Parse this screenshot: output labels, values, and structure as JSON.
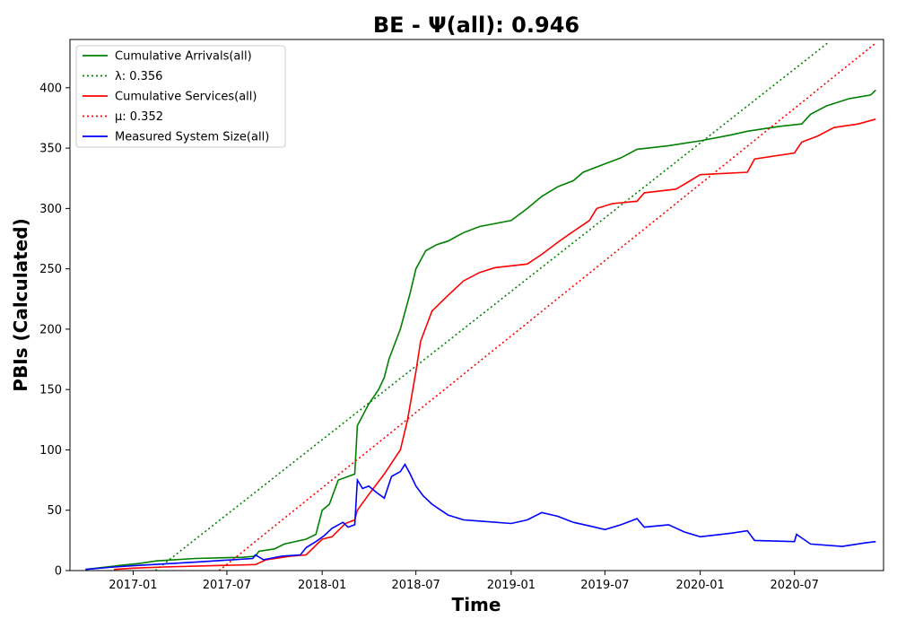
{
  "chart_data": {
    "type": "line",
    "title": "BE -  Ψ(all): 0.946",
    "xlabel": "Time",
    "ylabel": "PBIs (Calculated)",
    "xlim": [
      "2016-09-01",
      "2020-12-20"
    ],
    "ylim": [
      0,
      440
    ],
    "x_ticks": [
      "2017-01",
      "2017-07",
      "2018-01",
      "2018-07",
      "2019-01",
      "2019-07",
      "2020-01",
      "2020-07"
    ],
    "y_ticks": [
      0,
      50,
      100,
      150,
      200,
      250,
      300,
      350,
      400
    ],
    "grid": false,
    "legend_position": "upper-left",
    "colors": {
      "arrivals": "#008000",
      "services": "#ff0000",
      "system_size": "#0000ff"
    },
    "series": [
      {
        "name": "Cumulative Arrivals(all)",
        "style": "solid",
        "color": "#008000",
        "points": [
          [
            "2016-10-01",
            1
          ],
          [
            "2016-12-01",
            4
          ],
          [
            "2017-01-15",
            6
          ],
          [
            "2017-02-15",
            8
          ],
          [
            "2017-05-01",
            10
          ],
          [
            "2017-08-01",
            11
          ],
          [
            "2017-08-25",
            12
          ],
          [
            "2017-09-01",
            16
          ],
          [
            "2017-10-01",
            18
          ],
          [
            "2017-10-20",
            22
          ],
          [
            "2017-12-01",
            26
          ],
          [
            "2017-12-20",
            30
          ],
          [
            "2018-01-01",
            50
          ],
          [
            "2018-01-15",
            55
          ],
          [
            "2018-02-01",
            75
          ],
          [
            "2018-02-20",
            78
          ],
          [
            "2018-03-05",
            80
          ],
          [
            "2018-03-10",
            120
          ],
          [
            "2018-04-01",
            138
          ],
          [
            "2018-04-20",
            150
          ],
          [
            "2018-05-01",
            160
          ],
          [
            "2018-05-10",
            175
          ],
          [
            "2018-06-01",
            200
          ],
          [
            "2018-06-20",
            230
          ],
          [
            "2018-07-01",
            250
          ],
          [
            "2018-07-20",
            265
          ],
          [
            "2018-08-10",
            270
          ],
          [
            "2018-09-01",
            273
          ],
          [
            "2018-10-01",
            280
          ],
          [
            "2018-11-01",
            285
          ],
          [
            "2019-01-01",
            290
          ],
          [
            "2019-02-01",
            300
          ],
          [
            "2019-03-01",
            310
          ],
          [
            "2019-04-01",
            318
          ],
          [
            "2019-05-01",
            323
          ],
          [
            "2019-05-20",
            330
          ],
          [
            "2019-07-01",
            337
          ],
          [
            "2019-08-01",
            342
          ],
          [
            "2019-09-01",
            349
          ],
          [
            "2019-11-01",
            352
          ],
          [
            "2020-01-01",
            356
          ],
          [
            "2020-03-01",
            361
          ],
          [
            "2020-04-01",
            364
          ],
          [
            "2020-06-01",
            368
          ],
          [
            "2020-07-15",
            370
          ],
          [
            "2020-08-01",
            378
          ],
          [
            "2020-09-01",
            385
          ],
          [
            "2020-10-15",
            391
          ],
          [
            "2020-11-25",
            394
          ],
          [
            "2020-12-05",
            398
          ]
        ]
      },
      {
        "name": "λ: 0.356",
        "style": "dotted",
        "color": "#008000",
        "points": [
          [
            "2017-02-13",
            0
          ],
          [
            "2020-09-03",
            437
          ]
        ]
      },
      {
        "name": "Cumulative Services(all)",
        "style": "solid",
        "color": "#ff0000",
        "points": [
          [
            "2016-11-25",
            1
          ],
          [
            "2017-01-01",
            2
          ],
          [
            "2017-03-01",
            3
          ],
          [
            "2017-06-01",
            4
          ],
          [
            "2017-08-25",
            5
          ],
          [
            "2017-09-15",
            9
          ],
          [
            "2017-11-01",
            12
          ],
          [
            "2017-12-01",
            13
          ],
          [
            "2018-01-01",
            26
          ],
          [
            "2018-01-20",
            28
          ],
          [
            "2018-02-15",
            39
          ],
          [
            "2018-03-05",
            42
          ],
          [
            "2018-03-10",
            50
          ],
          [
            "2018-04-01",
            63
          ],
          [
            "2018-05-01",
            80
          ],
          [
            "2018-06-01",
            100
          ],
          [
            "2018-06-15",
            125
          ],
          [
            "2018-07-01",
            165
          ],
          [
            "2018-07-10",
            190
          ],
          [
            "2018-08-01",
            215
          ],
          [
            "2018-09-01",
            228
          ],
          [
            "2018-10-01",
            240
          ],
          [
            "2018-11-01",
            247
          ],
          [
            "2018-12-01",
            251
          ],
          [
            "2019-02-01",
            254
          ],
          [
            "2019-03-01",
            262
          ],
          [
            "2019-04-01",
            272
          ],
          [
            "2019-05-01",
            281
          ],
          [
            "2019-06-01",
            290
          ],
          [
            "2019-06-15",
            300
          ],
          [
            "2019-07-15",
            304
          ],
          [
            "2019-09-01",
            306
          ],
          [
            "2019-09-15",
            313
          ],
          [
            "2019-11-15",
            316
          ],
          [
            "2019-12-01",
            320
          ],
          [
            "2020-01-01",
            328
          ],
          [
            "2020-04-01",
            330
          ],
          [
            "2020-04-15",
            341
          ],
          [
            "2020-07-01",
            346
          ],
          [
            "2020-07-15",
            355
          ],
          [
            "2020-08-15",
            360
          ],
          [
            "2020-09-15",
            367
          ],
          [
            "2020-11-01",
            370
          ],
          [
            "2020-12-05",
            374
          ]
        ]
      },
      {
        "name": "μ: 0.352",
        "style": "dotted",
        "color": "#ff0000",
        "points": [
          [
            "2017-06-16",
            0
          ],
          [
            "2020-12-05",
            437
          ]
        ]
      },
      {
        "name": "Measured System Size(all)",
        "style": "solid",
        "color": "#0000ff",
        "points": [
          [
            "2016-10-01",
            1
          ],
          [
            "2016-11-25",
            3
          ],
          [
            "2017-01-01",
            4
          ],
          [
            "2017-05-01",
            7
          ],
          [
            "2017-08-20",
            10
          ],
          [
            "2017-08-25",
            13
          ],
          [
            "2017-09-10",
            9
          ],
          [
            "2017-10-15",
            12
          ],
          [
            "2017-11-20",
            13
          ],
          [
            "2017-12-01",
            19
          ],
          [
            "2017-12-20",
            24
          ],
          [
            "2018-01-05",
            29
          ],
          [
            "2018-01-20",
            35
          ],
          [
            "2018-02-10",
            40
          ],
          [
            "2018-02-20",
            36
          ],
          [
            "2018-03-05",
            38
          ],
          [
            "2018-03-10",
            75
          ],
          [
            "2018-03-20",
            68
          ],
          [
            "2018-04-01",
            70
          ],
          [
            "2018-04-15",
            65
          ],
          [
            "2018-05-01",
            60
          ],
          [
            "2018-05-15",
            78
          ],
          [
            "2018-06-01",
            82
          ],
          [
            "2018-06-10",
            88
          ],
          [
            "2018-06-20",
            80
          ],
          [
            "2018-07-01",
            70
          ],
          [
            "2018-07-15",
            62
          ],
          [
            "2018-08-01",
            55
          ],
          [
            "2018-09-01",
            46
          ],
          [
            "2018-10-01",
            42
          ],
          [
            "2018-11-01",
            41
          ],
          [
            "2019-01-01",
            39
          ],
          [
            "2019-02-01",
            42
          ],
          [
            "2019-03-01",
            48
          ],
          [
            "2019-04-01",
            45
          ],
          [
            "2019-05-01",
            40
          ],
          [
            "2019-06-01",
            37
          ],
          [
            "2019-07-01",
            34
          ],
          [
            "2019-08-01",
            38
          ],
          [
            "2019-09-01",
            43
          ],
          [
            "2019-09-15",
            36
          ],
          [
            "2019-11-01",
            38
          ],
          [
            "2019-12-01",
            32
          ],
          [
            "2020-01-01",
            28
          ],
          [
            "2020-03-01",
            31
          ],
          [
            "2020-04-01",
            33
          ],
          [
            "2020-04-15",
            25
          ],
          [
            "2020-07-01",
            24
          ],
          [
            "2020-07-05",
            30
          ],
          [
            "2020-08-01",
            22
          ],
          [
            "2020-10-01",
            20
          ],
          [
            "2020-11-15",
            23
          ],
          [
            "2020-12-05",
            24
          ]
        ]
      }
    ]
  }
}
